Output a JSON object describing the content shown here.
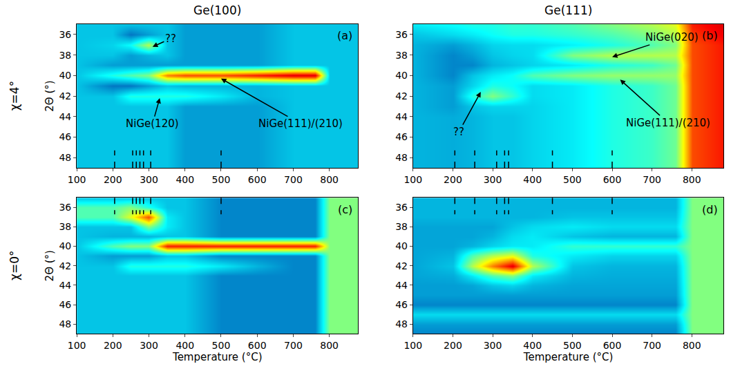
{
  "columns": [
    "Ge(100)",
    "Ge(111)"
  ],
  "rows": [
    "χ=4°",
    "χ=0°"
  ],
  "chart_data": [
    {
      "type": "heatmap",
      "label": "(a)",
      "xlim": [
        100,
        880
      ],
      "ylim": [
        49,
        35
      ],
      "xticks": [
        100,
        200,
        300,
        400,
        500,
        600,
        700,
        800
      ],
      "yticks": [
        36,
        38,
        40,
        42,
        44,
        46,
        48
      ],
      "y_label": "2Θ (°)",
      "zlim": [
        0,
        1
      ],
      "markers": [
        205,
        255,
        265,
        275,
        285,
        305,
        500
      ],
      "x": [
        100,
        200,
        250,
        300,
        350,
        400,
        500,
        600,
        700,
        760,
        800,
        875
      ],
      "y": [
        35,
        36,
        37,
        38,
        39,
        40,
        41,
        42,
        43,
        44,
        45,
        46,
        47,
        48,
        49
      ],
      "z": [
        [
          0.3,
          0.3,
          0.3,
          0.3,
          0.3,
          0.25,
          0.25,
          0.25,
          0.3,
          0.3,
          0.3,
          0.3
        ],
        [
          0.3,
          0.3,
          0.2,
          0.25,
          0.3,
          0.25,
          0.25,
          0.25,
          0.3,
          0.3,
          0.3,
          0.3
        ],
        [
          0.3,
          0.32,
          0.38,
          0.55,
          0.3,
          0.25,
          0.25,
          0.25,
          0.3,
          0.3,
          0.3,
          0.3
        ],
        [
          0.3,
          0.3,
          0.25,
          0.28,
          0.3,
          0.25,
          0.25,
          0.25,
          0.3,
          0.3,
          0.3,
          0.3
        ],
        [
          0.3,
          0.25,
          0.25,
          0.25,
          0.25,
          0.25,
          0.25,
          0.25,
          0.3,
          0.3,
          0.3,
          0.3
        ],
        [
          0.3,
          0.4,
          0.45,
          0.5,
          0.75,
          0.8,
          0.8,
          0.85,
          0.9,
          0.9,
          0.3,
          0.3
        ],
        [
          0.3,
          0.2,
          0.2,
          0.25,
          0.3,
          0.28,
          0.28,
          0.28,
          0.3,
          0.3,
          0.3,
          0.3
        ],
        [
          0.3,
          0.3,
          0.4,
          0.4,
          0.4,
          0.4,
          0.35,
          0.28,
          0.3,
          0.3,
          0.3,
          0.3
        ],
        [
          0.3,
          0.3,
          0.3,
          0.3,
          0.3,
          0.25,
          0.25,
          0.25,
          0.3,
          0.3,
          0.3,
          0.3
        ],
        [
          0.3,
          0.3,
          0.3,
          0.3,
          0.3,
          0.25,
          0.25,
          0.25,
          0.3,
          0.3,
          0.3,
          0.3
        ],
        [
          0.3,
          0.3,
          0.3,
          0.3,
          0.3,
          0.25,
          0.25,
          0.25,
          0.3,
          0.3,
          0.3,
          0.3
        ],
        [
          0.3,
          0.3,
          0.3,
          0.3,
          0.3,
          0.25,
          0.25,
          0.25,
          0.3,
          0.3,
          0.3,
          0.3
        ],
        [
          0.3,
          0.3,
          0.3,
          0.3,
          0.3,
          0.25,
          0.25,
          0.25,
          0.3,
          0.3,
          0.3,
          0.3
        ],
        [
          0.3,
          0.3,
          0.3,
          0.3,
          0.3,
          0.25,
          0.25,
          0.25,
          0.3,
          0.3,
          0.3,
          0.3
        ],
        [
          0.3,
          0.3,
          0.3,
          0.3,
          0.3,
          0.25,
          0.25,
          0.25,
          0.3,
          0.3,
          0.3,
          0.3
        ]
      ],
      "annotations": [
        {
          "text": "??",
          "x": 310,
          "y": 37.2,
          "text_x": 360,
          "text_y": 36.4
        },
        {
          "text": "NiGe(120)",
          "x": 330,
          "y": 42.2,
          "text_x": 310,
          "text_y": 44.7
        },
        {
          "text": "NiGe(111)/(210)",
          "x": 500,
          "y": 40.3,
          "text_x": 720,
          "text_y": 44.7
        }
      ]
    },
    {
      "type": "heatmap",
      "label": "(b)",
      "xlim": [
        100,
        880
      ],
      "ylim": [
        49,
        35
      ],
      "xticks": [
        100,
        200,
        300,
        400,
        500,
        600,
        700,
        800
      ],
      "yticks": [
        36,
        38,
        40,
        42,
        44,
        46,
        48
      ],
      "zlim": [
        0,
        1
      ],
      "markers": [
        205,
        255,
        310,
        330,
        340,
        450,
        600
      ],
      "x": [
        100,
        200,
        250,
        300,
        350,
        400,
        500,
        600,
        700,
        760,
        800,
        875
      ],
      "y": [
        35,
        36,
        37,
        38,
        39,
        40,
        41,
        42,
        43,
        44,
        45,
        46,
        47,
        48,
        49
      ],
      "z": [
        [
          0.35,
          0.38,
          0.4,
          0.4,
          0.42,
          0.42,
          0.45,
          0.5,
          0.55,
          0.6,
          0.85,
          0.9
        ],
        [
          0.3,
          0.33,
          0.35,
          0.38,
          0.4,
          0.4,
          0.42,
          0.45,
          0.5,
          0.55,
          0.82,
          0.88
        ],
        [
          0.28,
          0.25,
          0.28,
          0.32,
          0.33,
          0.33,
          0.36,
          0.4,
          0.45,
          0.5,
          0.8,
          0.85
        ],
        [
          0.28,
          0.22,
          0.25,
          0.3,
          0.32,
          0.33,
          0.5,
          0.55,
          0.55,
          0.55,
          0.8,
          0.85
        ],
        [
          0.28,
          0.22,
          0.22,
          0.28,
          0.3,
          0.32,
          0.35,
          0.4,
          0.43,
          0.48,
          0.8,
          0.85
        ],
        [
          0.28,
          0.22,
          0.3,
          0.35,
          0.38,
          0.45,
          0.5,
          0.52,
          0.52,
          0.52,
          0.8,
          0.85
        ],
        [
          0.28,
          0.25,
          0.32,
          0.4,
          0.38,
          0.33,
          0.35,
          0.4,
          0.43,
          0.48,
          0.8,
          0.85
        ],
        [
          0.28,
          0.25,
          0.4,
          0.5,
          0.42,
          0.33,
          0.35,
          0.4,
          0.43,
          0.48,
          0.8,
          0.85
        ],
        [
          0.28,
          0.25,
          0.3,
          0.32,
          0.32,
          0.32,
          0.35,
          0.4,
          0.43,
          0.48,
          0.8,
          0.85
        ],
        [
          0.28,
          0.27,
          0.28,
          0.3,
          0.3,
          0.32,
          0.35,
          0.4,
          0.43,
          0.48,
          0.8,
          0.85
        ],
        [
          0.28,
          0.27,
          0.28,
          0.3,
          0.3,
          0.32,
          0.35,
          0.4,
          0.43,
          0.48,
          0.8,
          0.85
        ],
        [
          0.28,
          0.27,
          0.28,
          0.3,
          0.3,
          0.32,
          0.35,
          0.4,
          0.43,
          0.48,
          0.8,
          0.85
        ],
        [
          0.28,
          0.27,
          0.28,
          0.3,
          0.3,
          0.32,
          0.35,
          0.4,
          0.43,
          0.48,
          0.8,
          0.85
        ],
        [
          0.28,
          0.27,
          0.28,
          0.3,
          0.3,
          0.32,
          0.35,
          0.4,
          0.43,
          0.48,
          0.8,
          0.85
        ],
        [
          0.28,
          0.27,
          0.28,
          0.3,
          0.3,
          0.32,
          0.35,
          0.4,
          0.43,
          0.48,
          0.8,
          0.85
        ]
      ],
      "annotations": [
        {
          "text": "NiGe(020)",
          "x": 600,
          "y": 38.2,
          "text_x": 750,
          "text_y": 36.3
        },
        {
          "text": "NiGe(111)/(210)",
          "x": 620,
          "y": 40.4,
          "text_x": 740,
          "text_y": 44.6
        },
        {
          "text": "??",
          "x": 270,
          "y": 41.6,
          "text_x": 215,
          "text_y": 45.5
        }
      ]
    },
    {
      "type": "heatmap",
      "label": "(c)",
      "xlim": [
        100,
        880
      ],
      "ylim": [
        49,
        35
      ],
      "xticks": [
        100,
        200,
        300,
        400,
        500,
        600,
        700,
        800
      ],
      "yticks": [
        36,
        38,
        40,
        42,
        44,
        46,
        48
      ],
      "x_label": "Temperature (°C)",
      "y_label": "2Θ (°)",
      "zlim": [
        0,
        1
      ],
      "markers": [
        205,
        255,
        265,
        275,
        285,
        305,
        500
      ],
      "x": [
        100,
        200,
        250,
        300,
        350,
        400,
        500,
        600,
        700,
        760,
        800,
        875
      ],
      "y": [
        35,
        36,
        37,
        38,
        39,
        40,
        41,
        42,
        43,
        44,
        45,
        46,
        47,
        48,
        49
      ],
      "z": [
        [
          0.3,
          0.3,
          0.3,
          0.3,
          0.3,
          0.3,
          0.22,
          0.22,
          0.22,
          0.22,
          0.5,
          0.5
        ],
        [
          0.45,
          0.45,
          0.5,
          0.4,
          0.3,
          0.3,
          0.22,
          0.22,
          0.22,
          0.22,
          0.5,
          0.5
        ],
        [
          0.45,
          0.45,
          0.6,
          0.8,
          0.35,
          0.3,
          0.22,
          0.22,
          0.22,
          0.22,
          0.5,
          0.5
        ],
        [
          0.3,
          0.3,
          0.3,
          0.5,
          0.35,
          0.3,
          0.22,
          0.22,
          0.22,
          0.22,
          0.5,
          0.5
        ],
        [
          0.3,
          0.28,
          0.28,
          0.28,
          0.3,
          0.3,
          0.22,
          0.22,
          0.22,
          0.22,
          0.5,
          0.5
        ],
        [
          0.3,
          0.45,
          0.5,
          0.5,
          0.85,
          0.85,
          0.85,
          0.85,
          0.85,
          0.85,
          0.5,
          0.5
        ],
        [
          0.3,
          0.25,
          0.25,
          0.25,
          0.3,
          0.3,
          0.22,
          0.22,
          0.22,
          0.22,
          0.5,
          0.5
        ],
        [
          0.3,
          0.3,
          0.4,
          0.4,
          0.4,
          0.4,
          0.35,
          0.28,
          0.22,
          0.22,
          0.5,
          0.5
        ],
        [
          0.3,
          0.3,
          0.3,
          0.3,
          0.3,
          0.3,
          0.22,
          0.22,
          0.22,
          0.22,
          0.5,
          0.5
        ],
        [
          0.3,
          0.3,
          0.3,
          0.3,
          0.3,
          0.3,
          0.22,
          0.22,
          0.22,
          0.22,
          0.5,
          0.5
        ],
        [
          0.3,
          0.3,
          0.3,
          0.3,
          0.3,
          0.3,
          0.22,
          0.22,
          0.22,
          0.22,
          0.5,
          0.5
        ],
        [
          0.3,
          0.3,
          0.3,
          0.3,
          0.3,
          0.3,
          0.22,
          0.22,
          0.22,
          0.22,
          0.5,
          0.5
        ],
        [
          0.3,
          0.3,
          0.3,
          0.3,
          0.3,
          0.3,
          0.22,
          0.22,
          0.22,
          0.22,
          0.5,
          0.5
        ],
        [
          0.3,
          0.3,
          0.3,
          0.3,
          0.3,
          0.3,
          0.22,
          0.22,
          0.22,
          0.22,
          0.5,
          0.5
        ],
        [
          0.3,
          0.3,
          0.3,
          0.3,
          0.3,
          0.3,
          0.22,
          0.22,
          0.22,
          0.22,
          0.5,
          0.5
        ]
      ],
      "annotations": []
    },
    {
      "type": "heatmap",
      "label": "(d)",
      "xlim": [
        100,
        880
      ],
      "ylim": [
        49,
        35
      ],
      "xticks": [
        100,
        200,
        300,
        400,
        500,
        600,
        700,
        800
      ],
      "yticks": [
        36,
        38,
        40,
        42,
        44,
        46,
        48
      ],
      "x_label": "Temperature (°C)",
      "zlim": [
        0,
        1
      ],
      "markers": [
        205,
        255,
        310,
        330,
        340,
        450,
        600
      ],
      "x": [
        100,
        200,
        250,
        300,
        350,
        400,
        500,
        600,
        700,
        760,
        800,
        875
      ],
      "y": [
        35,
        36,
        37,
        38,
        39,
        40,
        41,
        42,
        43,
        44,
        45,
        46,
        47,
        48,
        49
      ],
      "z": [
        [
          0.28,
          0.28,
          0.28,
          0.28,
          0.28,
          0.28,
          0.28,
          0.28,
          0.28,
          0.28,
          0.5,
          0.5
        ],
        [
          0.28,
          0.28,
          0.28,
          0.28,
          0.28,
          0.28,
          0.28,
          0.28,
          0.28,
          0.28,
          0.5,
          0.5
        ],
        [
          0.28,
          0.28,
          0.28,
          0.28,
          0.28,
          0.28,
          0.3,
          0.3,
          0.3,
          0.3,
          0.5,
          0.5
        ],
        [
          0.26,
          0.26,
          0.26,
          0.26,
          0.3,
          0.33,
          0.35,
          0.33,
          0.33,
          0.33,
          0.5,
          0.5
        ],
        [
          0.26,
          0.26,
          0.26,
          0.28,
          0.33,
          0.35,
          0.3,
          0.28,
          0.28,
          0.28,
          0.5,
          0.5
        ],
        [
          0.26,
          0.26,
          0.28,
          0.32,
          0.35,
          0.35,
          0.42,
          0.42,
          0.42,
          0.42,
          0.5,
          0.5
        ],
        [
          0.26,
          0.28,
          0.45,
          0.55,
          0.6,
          0.4,
          0.35,
          0.32,
          0.32,
          0.32,
          0.5,
          0.5
        ],
        [
          0.26,
          0.3,
          0.55,
          0.75,
          0.9,
          0.55,
          0.3,
          0.28,
          0.28,
          0.28,
          0.5,
          0.5
        ],
        [
          0.26,
          0.27,
          0.35,
          0.45,
          0.5,
          0.35,
          0.28,
          0.27,
          0.27,
          0.27,
          0.5,
          0.5
        ],
        [
          0.25,
          0.25,
          0.26,
          0.3,
          0.32,
          0.28,
          0.26,
          0.26,
          0.26,
          0.26,
          0.5,
          0.5
        ],
        [
          0.25,
          0.25,
          0.25,
          0.25,
          0.25,
          0.25,
          0.25,
          0.25,
          0.25,
          0.25,
          0.5,
          0.5
        ],
        [
          0.22,
          0.22,
          0.22,
          0.22,
          0.22,
          0.22,
          0.22,
          0.22,
          0.22,
          0.22,
          0.5,
          0.5
        ],
        [
          0.33,
          0.33,
          0.33,
          0.33,
          0.33,
          0.33,
          0.33,
          0.33,
          0.33,
          0.33,
          0.5,
          0.5
        ],
        [
          0.25,
          0.25,
          0.25,
          0.25,
          0.25,
          0.25,
          0.25,
          0.25,
          0.25,
          0.25,
          0.5,
          0.5
        ],
        [
          0.22,
          0.22,
          0.22,
          0.22,
          0.22,
          0.22,
          0.22,
          0.22,
          0.22,
          0.22,
          0.5,
          0.5
        ]
      ],
      "annotations": []
    }
  ]
}
